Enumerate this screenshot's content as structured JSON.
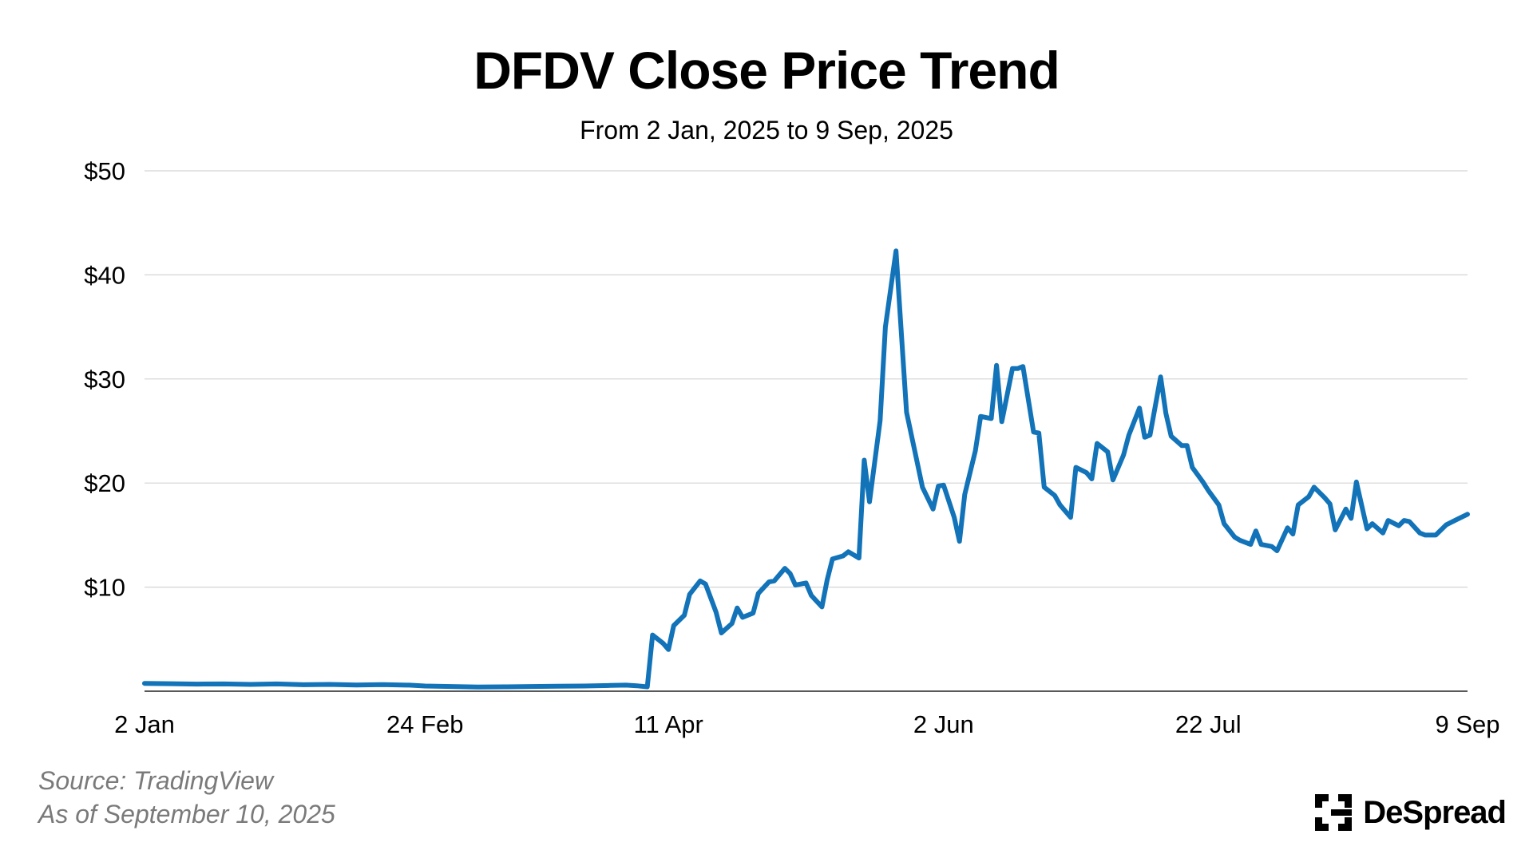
{
  "chart_data": {
    "type": "line",
    "title": "DFDV Close Price Trend",
    "subtitle": "From 2 Jan, 2025 to 9 Sep, 2025",
    "xlabel": "",
    "ylabel": "",
    "x_start": "2025-01-02",
    "x_end": "2025-09-09",
    "x_ticks": [
      {
        "date": "2025-01-02",
        "label": "2 Jan"
      },
      {
        "date": "2025-02-24",
        "label": "24 Feb"
      },
      {
        "date": "2025-04-11",
        "label": "11 Apr"
      },
      {
        "date": "2025-06-02",
        "label": "2 Jun"
      },
      {
        "date": "2025-07-22",
        "label": "22 Jul"
      },
      {
        "date": "2025-09-09",
        "label": "9 Sep"
      }
    ],
    "y_ticks": [
      {
        "value": 10,
        "label": "$10"
      },
      {
        "value": 20,
        "label": "$20"
      },
      {
        "value": 30,
        "label": "$30"
      },
      {
        "value": 40,
        "label": "$40"
      },
      {
        "value": 50,
        "label": "$50"
      }
    ],
    "ylim": [
      0,
      50
    ],
    "grid": true,
    "series": [
      {
        "color": "#1273b8",
        "points": [
          [
            "2025-01-02",
            0.75
          ],
          [
            "2025-01-07",
            0.72
          ],
          [
            "2025-01-12",
            0.68
          ],
          [
            "2025-01-17",
            0.7
          ],
          [
            "2025-01-22",
            0.65
          ],
          [
            "2025-01-27",
            0.7
          ],
          [
            "2025-02-01",
            0.62
          ],
          [
            "2025-02-06",
            0.65
          ],
          [
            "2025-02-11",
            0.6
          ],
          [
            "2025-02-16",
            0.63
          ],
          [
            "2025-02-21",
            0.58
          ],
          [
            "2025-02-24",
            0.5
          ],
          [
            "2025-03-01",
            0.45
          ],
          [
            "2025-03-06",
            0.4
          ],
          [
            "2025-03-11",
            0.42
          ],
          [
            "2025-03-16",
            0.45
          ],
          [
            "2025-03-21",
            0.48
          ],
          [
            "2025-03-26",
            0.5
          ],
          [
            "2025-03-31",
            0.55
          ],
          [
            "2025-04-03",
            0.58
          ],
          [
            "2025-04-05",
            0.52
          ],
          [
            "2025-04-07",
            0.42
          ],
          [
            "2025-04-08",
            5.4
          ],
          [
            "2025-04-10",
            4.6
          ],
          [
            "2025-04-11",
            4.0
          ],
          [
            "2025-04-12",
            6.3
          ],
          [
            "2025-04-14",
            7.3
          ],
          [
            "2025-04-15",
            9.3
          ],
          [
            "2025-04-17",
            10.6
          ],
          [
            "2025-04-18",
            10.3
          ],
          [
            "2025-04-20",
            7.6
          ],
          [
            "2025-04-21",
            5.6
          ],
          [
            "2025-04-23",
            6.5
          ],
          [
            "2025-04-24",
            8.0
          ],
          [
            "2025-04-25",
            7.1
          ],
          [
            "2025-04-27",
            7.5
          ],
          [
            "2025-04-28",
            9.4
          ],
          [
            "2025-04-30",
            10.5
          ],
          [
            "2025-05-01",
            10.6
          ],
          [
            "2025-05-03",
            11.8
          ],
          [
            "2025-05-04",
            11.3
          ],
          [
            "2025-05-05",
            10.2
          ],
          [
            "2025-05-07",
            10.4
          ],
          [
            "2025-05-08",
            9.2
          ],
          [
            "2025-05-10",
            8.1
          ],
          [
            "2025-05-11",
            10.7
          ],
          [
            "2025-05-12",
            12.7
          ],
          [
            "2025-05-14",
            13.0
          ],
          [
            "2025-05-15",
            13.4
          ],
          [
            "2025-05-17",
            12.8
          ],
          [
            "2025-05-18",
            22.2
          ],
          [
            "2025-05-19",
            18.2
          ],
          [
            "2025-05-21",
            26.0
          ],
          [
            "2025-05-22",
            35.0
          ],
          [
            "2025-05-24",
            42.3
          ],
          [
            "2025-05-25",
            34.5
          ],
          [
            "2025-05-26",
            26.8
          ],
          [
            "2025-05-28",
            22.0
          ],
          [
            "2025-05-29",
            19.6
          ],
          [
            "2025-05-31",
            17.5
          ],
          [
            "2025-06-01",
            19.7
          ],
          [
            "2025-06-02",
            19.8
          ],
          [
            "2025-06-04",
            16.7
          ],
          [
            "2025-06-05",
            14.4
          ],
          [
            "2025-06-06",
            18.9
          ],
          [
            "2025-06-08",
            23.1
          ],
          [
            "2025-06-09",
            26.4
          ],
          [
            "2025-06-11",
            26.2
          ],
          [
            "2025-06-12",
            31.3
          ],
          [
            "2025-06-13",
            25.9
          ],
          [
            "2025-06-15",
            31.0
          ],
          [
            "2025-06-16",
            31.0
          ],
          [
            "2025-06-17",
            31.2
          ],
          [
            "2025-06-19",
            24.9
          ],
          [
            "2025-06-20",
            24.8
          ],
          [
            "2025-06-21",
            19.6
          ],
          [
            "2025-06-23",
            18.8
          ],
          [
            "2025-06-24",
            17.9
          ],
          [
            "2025-06-26",
            16.7
          ],
          [
            "2025-06-27",
            21.5
          ],
          [
            "2025-06-29",
            21.0
          ],
          [
            "2025-06-30",
            20.4
          ],
          [
            "2025-07-01",
            23.8
          ],
          [
            "2025-07-03",
            23.0
          ],
          [
            "2025-07-04",
            20.3
          ],
          [
            "2025-07-06",
            22.7
          ],
          [
            "2025-07-07",
            24.6
          ],
          [
            "2025-07-09",
            27.2
          ],
          [
            "2025-07-10",
            24.4
          ],
          [
            "2025-07-11",
            24.6
          ],
          [
            "2025-07-13",
            30.2
          ],
          [
            "2025-07-14",
            26.7
          ],
          [
            "2025-07-15",
            24.5
          ],
          [
            "2025-07-17",
            23.6
          ],
          [
            "2025-07-18",
            23.6
          ],
          [
            "2025-07-19",
            21.5
          ],
          [
            "2025-07-21",
            20.1
          ],
          [
            "2025-07-22",
            19.3
          ],
          [
            "2025-07-24",
            17.9
          ],
          [
            "2025-07-25",
            16.1
          ],
          [
            "2025-07-27",
            14.8
          ],
          [
            "2025-07-28",
            14.5
          ],
          [
            "2025-07-30",
            14.1
          ],
          [
            "2025-07-31",
            15.4
          ],
          [
            "2025-08-01",
            14.1
          ],
          [
            "2025-08-03",
            13.9
          ],
          [
            "2025-08-04",
            13.5
          ],
          [
            "2025-08-06",
            15.7
          ],
          [
            "2025-08-07",
            15.1
          ],
          [
            "2025-08-08",
            17.9
          ],
          [
            "2025-08-10",
            18.7
          ],
          [
            "2025-08-11",
            19.6
          ],
          [
            "2025-08-13",
            18.6
          ],
          [
            "2025-08-14",
            18.0
          ],
          [
            "2025-08-15",
            15.5
          ],
          [
            "2025-08-17",
            17.5
          ],
          [
            "2025-08-18",
            16.6
          ],
          [
            "2025-08-19",
            20.1
          ],
          [
            "2025-08-21",
            15.6
          ],
          [
            "2025-08-22",
            16.1
          ],
          [
            "2025-08-24",
            15.2
          ],
          [
            "2025-08-25",
            16.4
          ],
          [
            "2025-08-27",
            15.9
          ],
          [
            "2025-08-28",
            16.4
          ],
          [
            "2025-08-29",
            16.3
          ],
          [
            "2025-08-31",
            15.2
          ],
          [
            "2025-09-01",
            15.0
          ],
          [
            "2025-09-03",
            15.0
          ],
          [
            "2025-09-05",
            16.0
          ],
          [
            "2025-09-07",
            16.5
          ],
          [
            "2025-09-09",
            17.0
          ]
        ]
      }
    ]
  },
  "footer": {
    "source": "Source: TradingView",
    "as_of": "As of September 10, 2025"
  },
  "brand": {
    "name": "DeSpread",
    "logo_icon": "despread-logo-icon"
  }
}
